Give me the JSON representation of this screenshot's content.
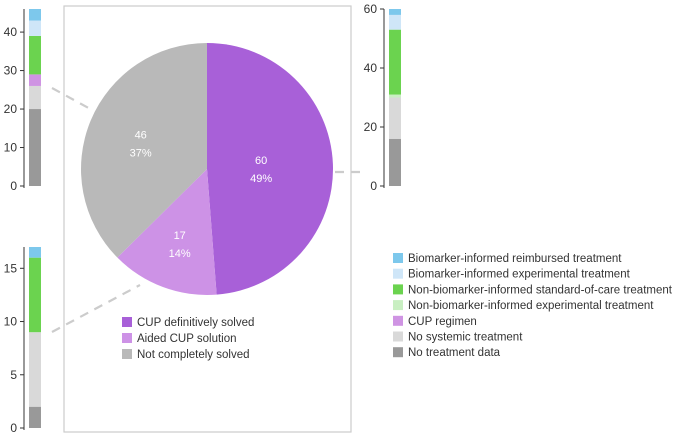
{
  "chart_data": [
    {
      "type": "pie",
      "categories": [
        "CUP definitively solved",
        "Aided CUP solution",
        "Not completely solved"
      ],
      "values": [
        60,
        17,
        46
      ],
      "percent_labels": [
        "49%",
        "14%",
        "37%"
      ],
      "colors": [
        "#a860d8",
        "#cd92e6",
        "#b9b9b9"
      ],
      "legend_position": "bottom-left"
    },
    {
      "type": "bar",
      "stacked": true,
      "position_word": "top-left",
      "categories": [
        "No treatment data",
        "No systemic treatment",
        "CUP regimen",
        "Non-biomarker-informed experimental treatment",
        "Non-biomarker-informed standard-of-care treatment",
        "Biomarker-informed experimental treatment",
        "Biomarker-informed reimbursed treatment"
      ],
      "values": [
        20,
        6,
        3,
        0,
        10,
        4,
        3
      ],
      "ylim": [
        0,
        46
      ],
      "yticks": [
        "0",
        "10",
        "20",
        "30",
        "40"
      ]
    },
    {
      "type": "bar",
      "stacked": true,
      "position_word": "right",
      "categories": [
        "No treatment data",
        "No systemic treatment",
        "CUP regimen",
        "Non-biomarker-informed experimental treatment",
        "Non-biomarker-informed standard-of-care treatment",
        "Biomarker-informed experimental treatment",
        "Biomarker-informed reimbursed treatment"
      ],
      "values": [
        16,
        14,
        0,
        1,
        22,
        5,
        2
      ],
      "ylim": [
        0,
        60
      ],
      "yticks": [
        "0",
        "20",
        "40",
        "60"
      ]
    },
    {
      "type": "bar",
      "stacked": true,
      "position_word": "bottom-left",
      "categories": [
        "No treatment data",
        "No systemic treatment",
        "CUP regimen",
        "Non-biomarker-informed experimental treatment",
        "Non-biomarker-informed standard-of-care treatment",
        "Biomarker-informed experimental treatment",
        "Biomarker-informed reimbursed treatment"
      ],
      "values": [
        2,
        7,
        0,
        0,
        7,
        0,
        1
      ],
      "ylim": [
        0,
        17
      ],
      "yticks": [
        "0",
        "5",
        "10",
        "15"
      ]
    }
  ],
  "treatment_legend": {
    "labels": [
      "Biomarker-informed reimbursed treatment",
      "Biomarker-informed experimental treatment",
      "Non-biomarker-informed standard-of-care treatment",
      "Non-biomarker-informed experimental treatment",
      "CUP regimen",
      "No systemic treatment",
      "No treatment data"
    ],
    "colors": [
      "#7dc8ec",
      "#cfe6f8",
      "#6bd34f",
      "#c9efc2",
      "#cf94e3",
      "#d9d9d9",
      "#999999"
    ]
  },
  "stack_colors": [
    "#999999",
    "#d9d9d9",
    "#cf94e3",
    "#c9efc2",
    "#6bd34f",
    "#cfe6f8",
    "#7dc8ec"
  ],
  "connector_color": "#cccccc"
}
